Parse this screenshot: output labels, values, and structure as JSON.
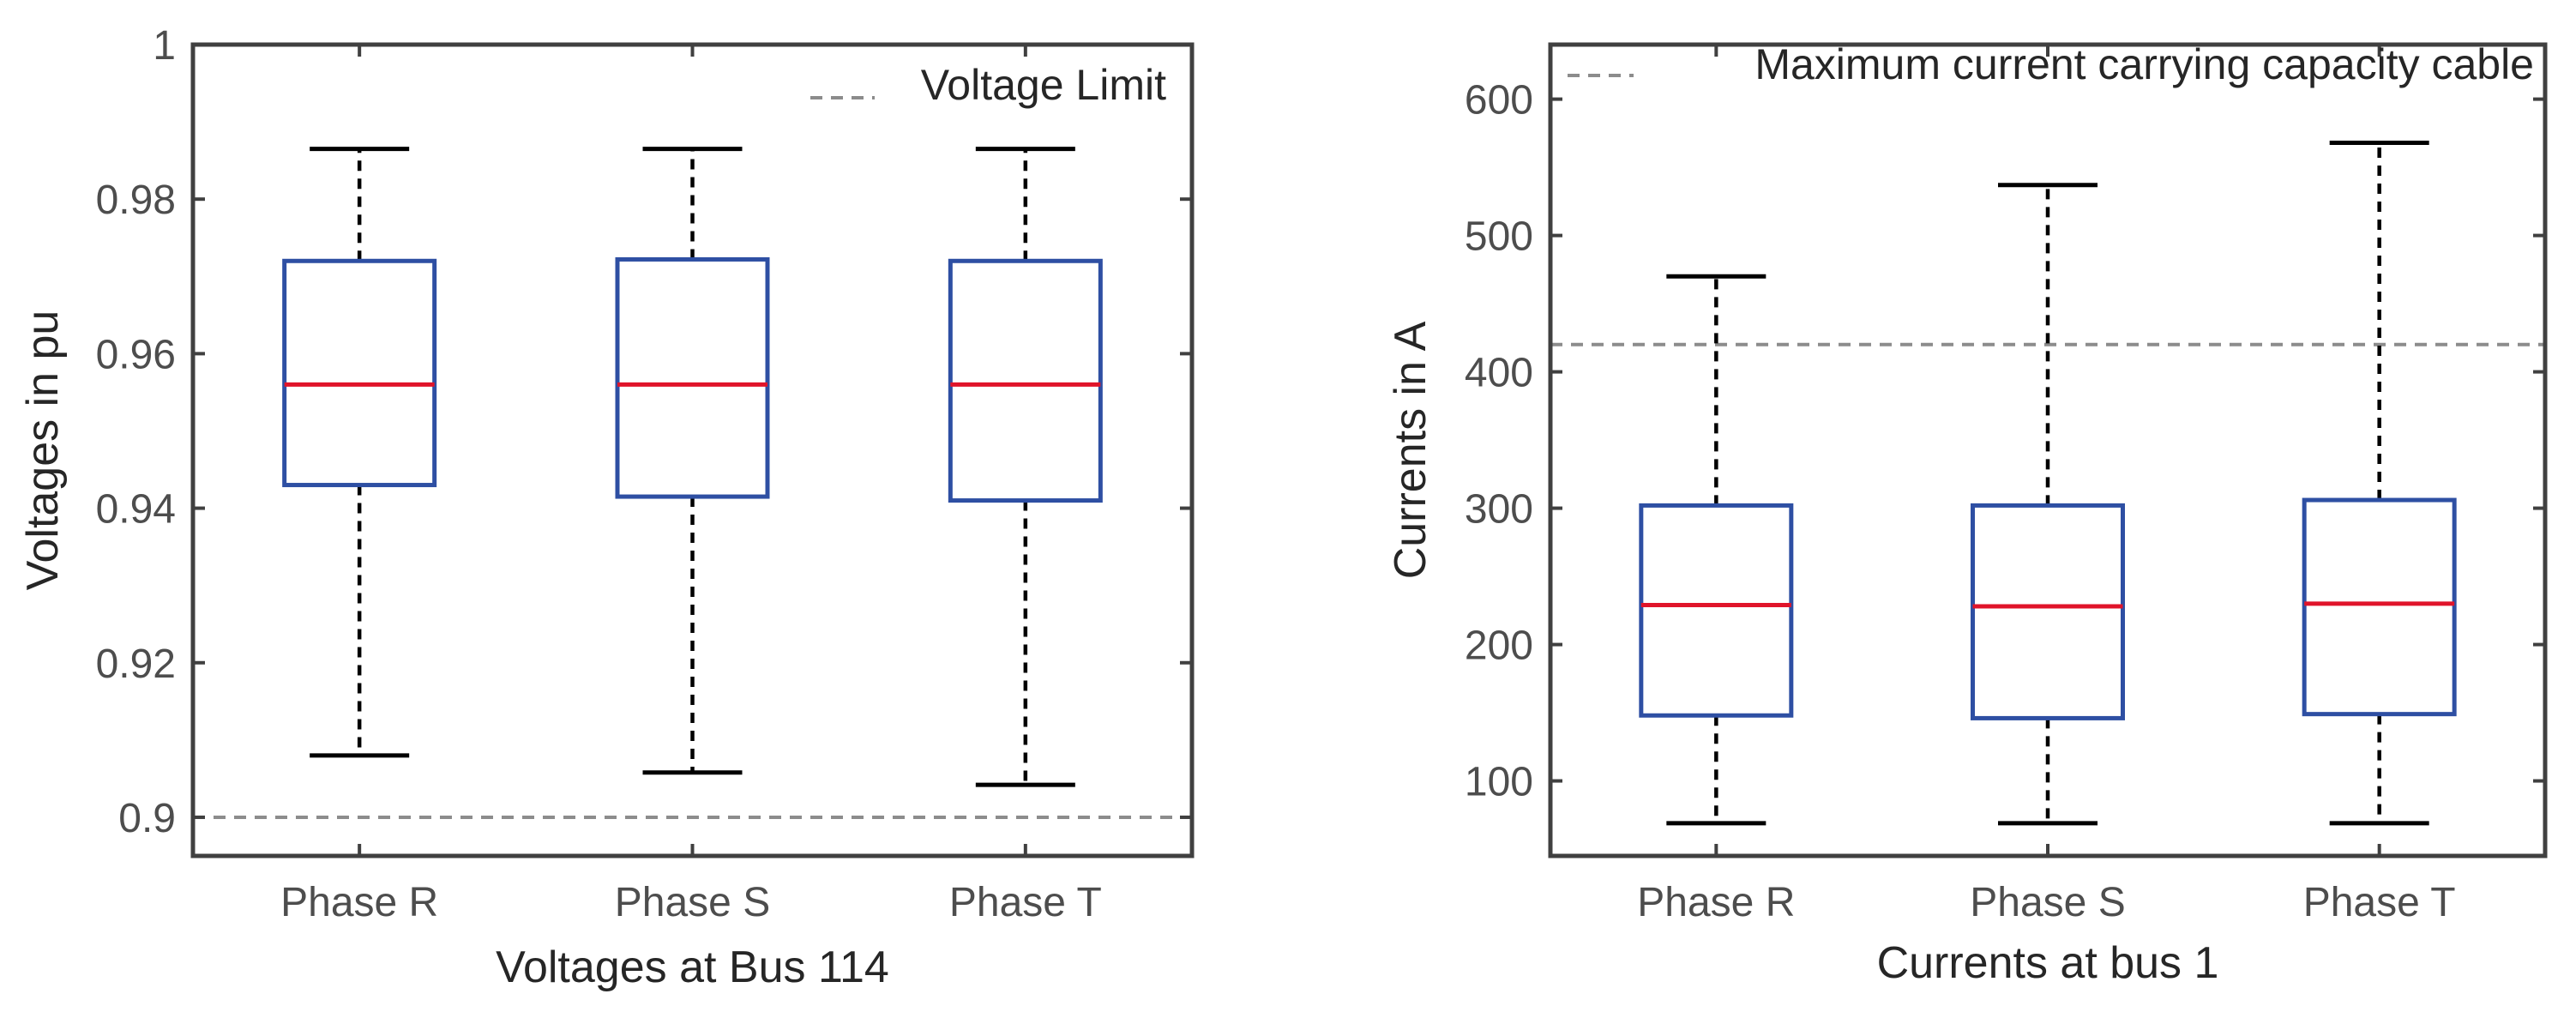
{
  "chart_data": [
    {
      "type": "boxplot",
      "title": "",
      "xlabel": "Voltages at Bus 114",
      "ylabel": "Voltages in pu",
      "categories": [
        "Phase R",
        "Phase S",
        "Phase T"
      ],
      "ylim": [
        0.895,
        1.0
      ],
      "yticks": [
        0.9,
        0.92,
        0.94,
        0.96,
        0.98,
        1
      ],
      "ytick_labels": [
        "0.9",
        "0.92",
        "0.94",
        "0.96",
        "0.98",
        "1"
      ],
      "boxes": [
        {
          "name": "Phase R",
          "whisker_low": 0.908,
          "q1": 0.943,
          "median": 0.956,
          "q3": 0.972,
          "whisker_high": 0.9865
        },
        {
          "name": "Phase S",
          "whisker_low": 0.9058,
          "q1": 0.9415,
          "median": 0.956,
          "q3": 0.9722,
          "whisker_high": 0.9865
        },
        {
          "name": "Phase T",
          "whisker_low": 0.9042,
          "q1": 0.941,
          "median": 0.956,
          "q3": 0.972,
          "whisker_high": 0.9865
        }
      ],
      "reference_line": {
        "label": "Voltage Limit",
        "value": 0.9
      },
      "legend": {
        "entries": [
          "Voltage Limit"
        ],
        "location": "top-right"
      },
      "grid": false
    },
    {
      "type": "boxplot",
      "title": "",
      "xlabel": "Currents at bus 1",
      "ylabel": "Currents in A",
      "categories": [
        "Phase R",
        "Phase S",
        "Phase T"
      ],
      "ylim": [
        45,
        640
      ],
      "yticks": [
        100,
        200,
        300,
        400,
        500,
        600
      ],
      "ytick_labels": [
        "100",
        "200",
        "300",
        "400",
        "500",
        "600"
      ],
      "boxes": [
        {
          "name": "Phase R",
          "whisker_low": 69,
          "q1": 148,
          "median": 229,
          "q3": 302,
          "whisker_high": 470
        },
        {
          "name": "Phase S",
          "whisker_low": 69,
          "q1": 146,
          "median": 228,
          "q3": 302,
          "whisker_high": 537
        },
        {
          "name": "Phase T",
          "whisker_low": 69,
          "q1": 149,
          "median": 230,
          "q3": 306,
          "whisker_high": 568
        }
      ],
      "reference_line": {
        "label": "Maximum current carrying capacity cable",
        "value": 420
      },
      "legend": {
        "entries": [
          "Maximum current carrying capacity cable"
        ],
        "location": "top-right"
      },
      "grid": false
    }
  ],
  "colors": {
    "box": "#2e4fa3",
    "median": "#e0142a",
    "whisker": "#000000",
    "reference": "#8c8c8c",
    "axis": "#404040"
  }
}
